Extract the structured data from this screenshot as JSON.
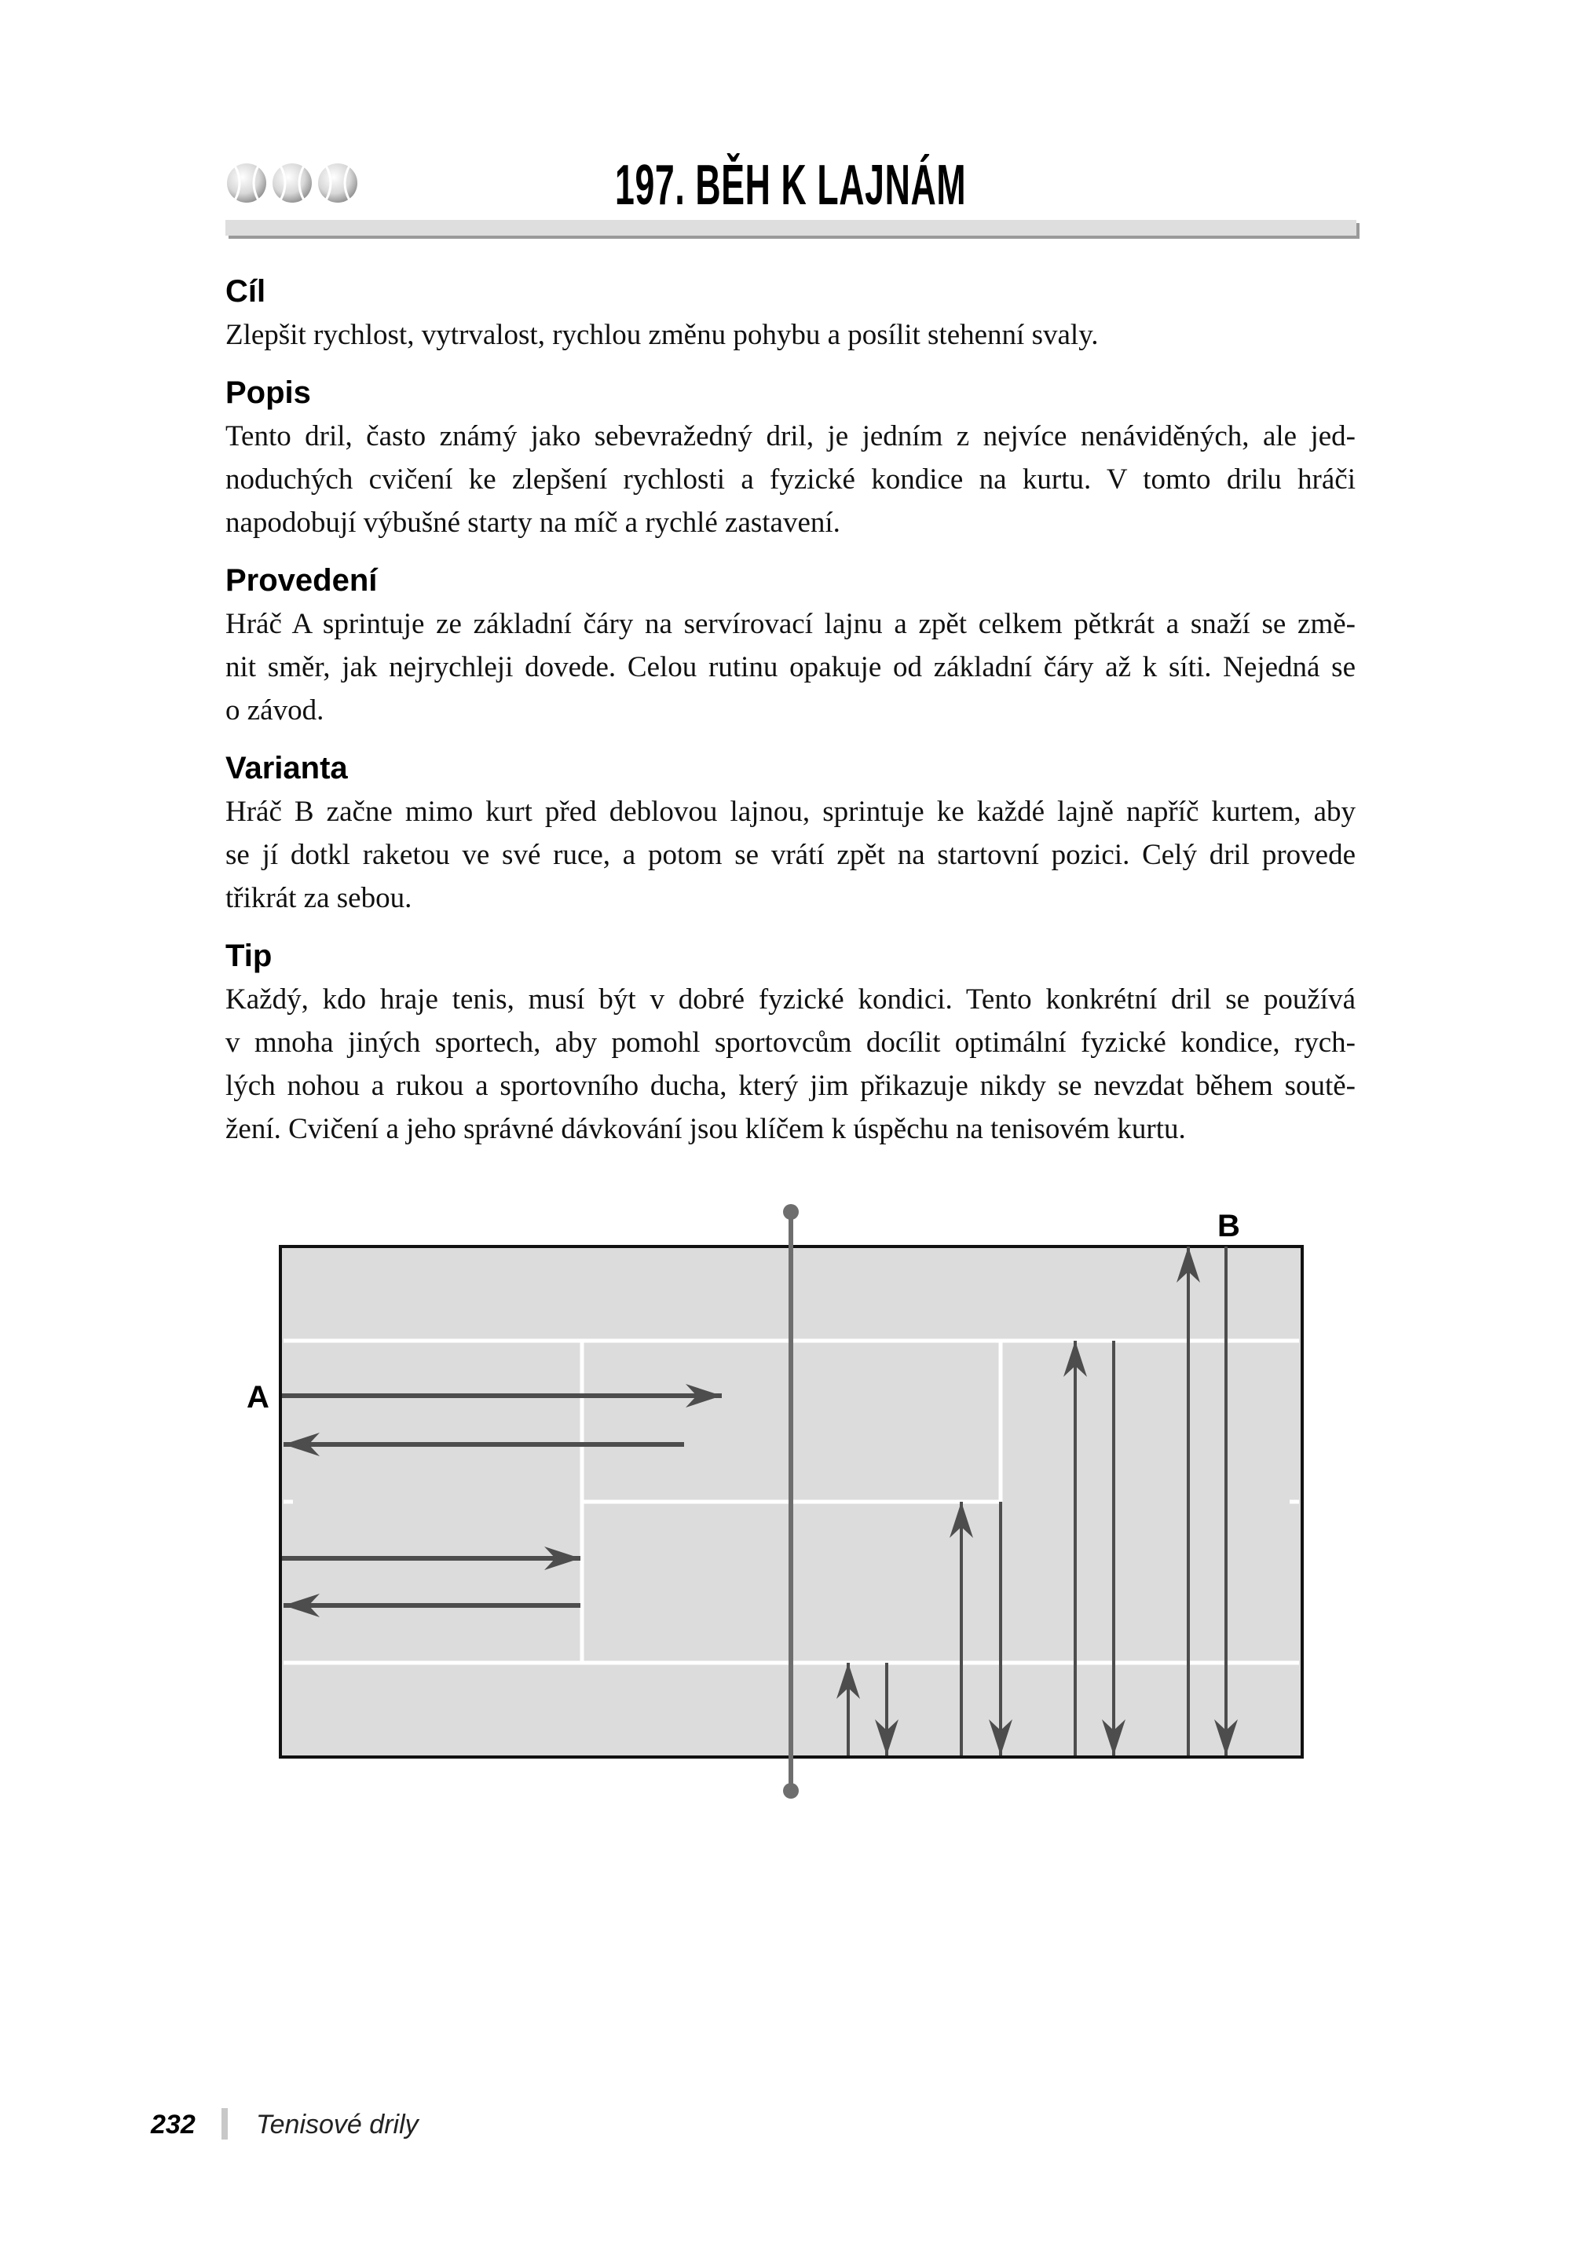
{
  "header": {
    "title": "197. BĚH K LAJNÁM",
    "difficulty_icons": [
      "tennis-ball-icon",
      "tennis-ball-icon",
      "tennis-ball-icon"
    ]
  },
  "sections": [
    {
      "heading": "Cíl",
      "lines": [
        "Zlepšit rychlost, vytrvalost, rychlou změnu pohybu a posílit stehenní svaly."
      ]
    },
    {
      "heading": "Popis",
      "lines": [
        "Tento dril, často známý jako sebevražedný dril, je jedním z nejvíce nenáviděných, ale jed-",
        "noduchých cvičení ke zlepšení rychlosti a fyzické kondice na kurtu. V tomto drilu hráči",
        "napodobují výbušné starty na míč a rychlé zastavení."
      ]
    },
    {
      "heading": "Provedení",
      "lines": [
        "Hráč A sprintuje ze základní čáry na servírovací lajnu a zpět celkem pětkrát a snaží se změ-",
        "nit směr, jak nejrychleji dovede. Celou rutinu opakuje od základní čáry až k síti. Nejedná se",
        "o závod."
      ]
    },
    {
      "heading": "Varianta",
      "lines": [
        "Hráč B začne mimo kurt před deblovou lajnou, sprintuje ke každé lajně napříč kurtem, aby",
        "se jí dotkl raketou ve své ruce, a potom se vrátí zpět na startovní pozici. Celý dril provede",
        "třikrát za sebou."
      ]
    },
    {
      "heading": "Tip",
      "lines": [
        "Každý, kdo hraje tenis, musí být v dobré fyzické kondici. Tento konkrétní dril se používá",
        "v mnoha jiných sportech, aby pomohl sportovcům docílit optimální fyzické kondice, rych-",
        "lých nohou a rukou a sportovního ducha, který jim přikazuje nikdy se nevzdat během soutě-",
        "žení. Cvičení a jeho správné dávkování jsou klíčem k úspěchu na tenisovém kurtu."
      ]
    }
  ],
  "diagram": {
    "player_a_label": "A",
    "player_b_label": "B",
    "colors": {
      "court": "#dcdcdc",
      "lines": "#ffffff",
      "arrows": "#4d4d4d",
      "net": "#6e6e6e",
      "border": "#111111"
    }
  },
  "footer": {
    "page_number": "232",
    "book_title": "Tenisové drily"
  }
}
